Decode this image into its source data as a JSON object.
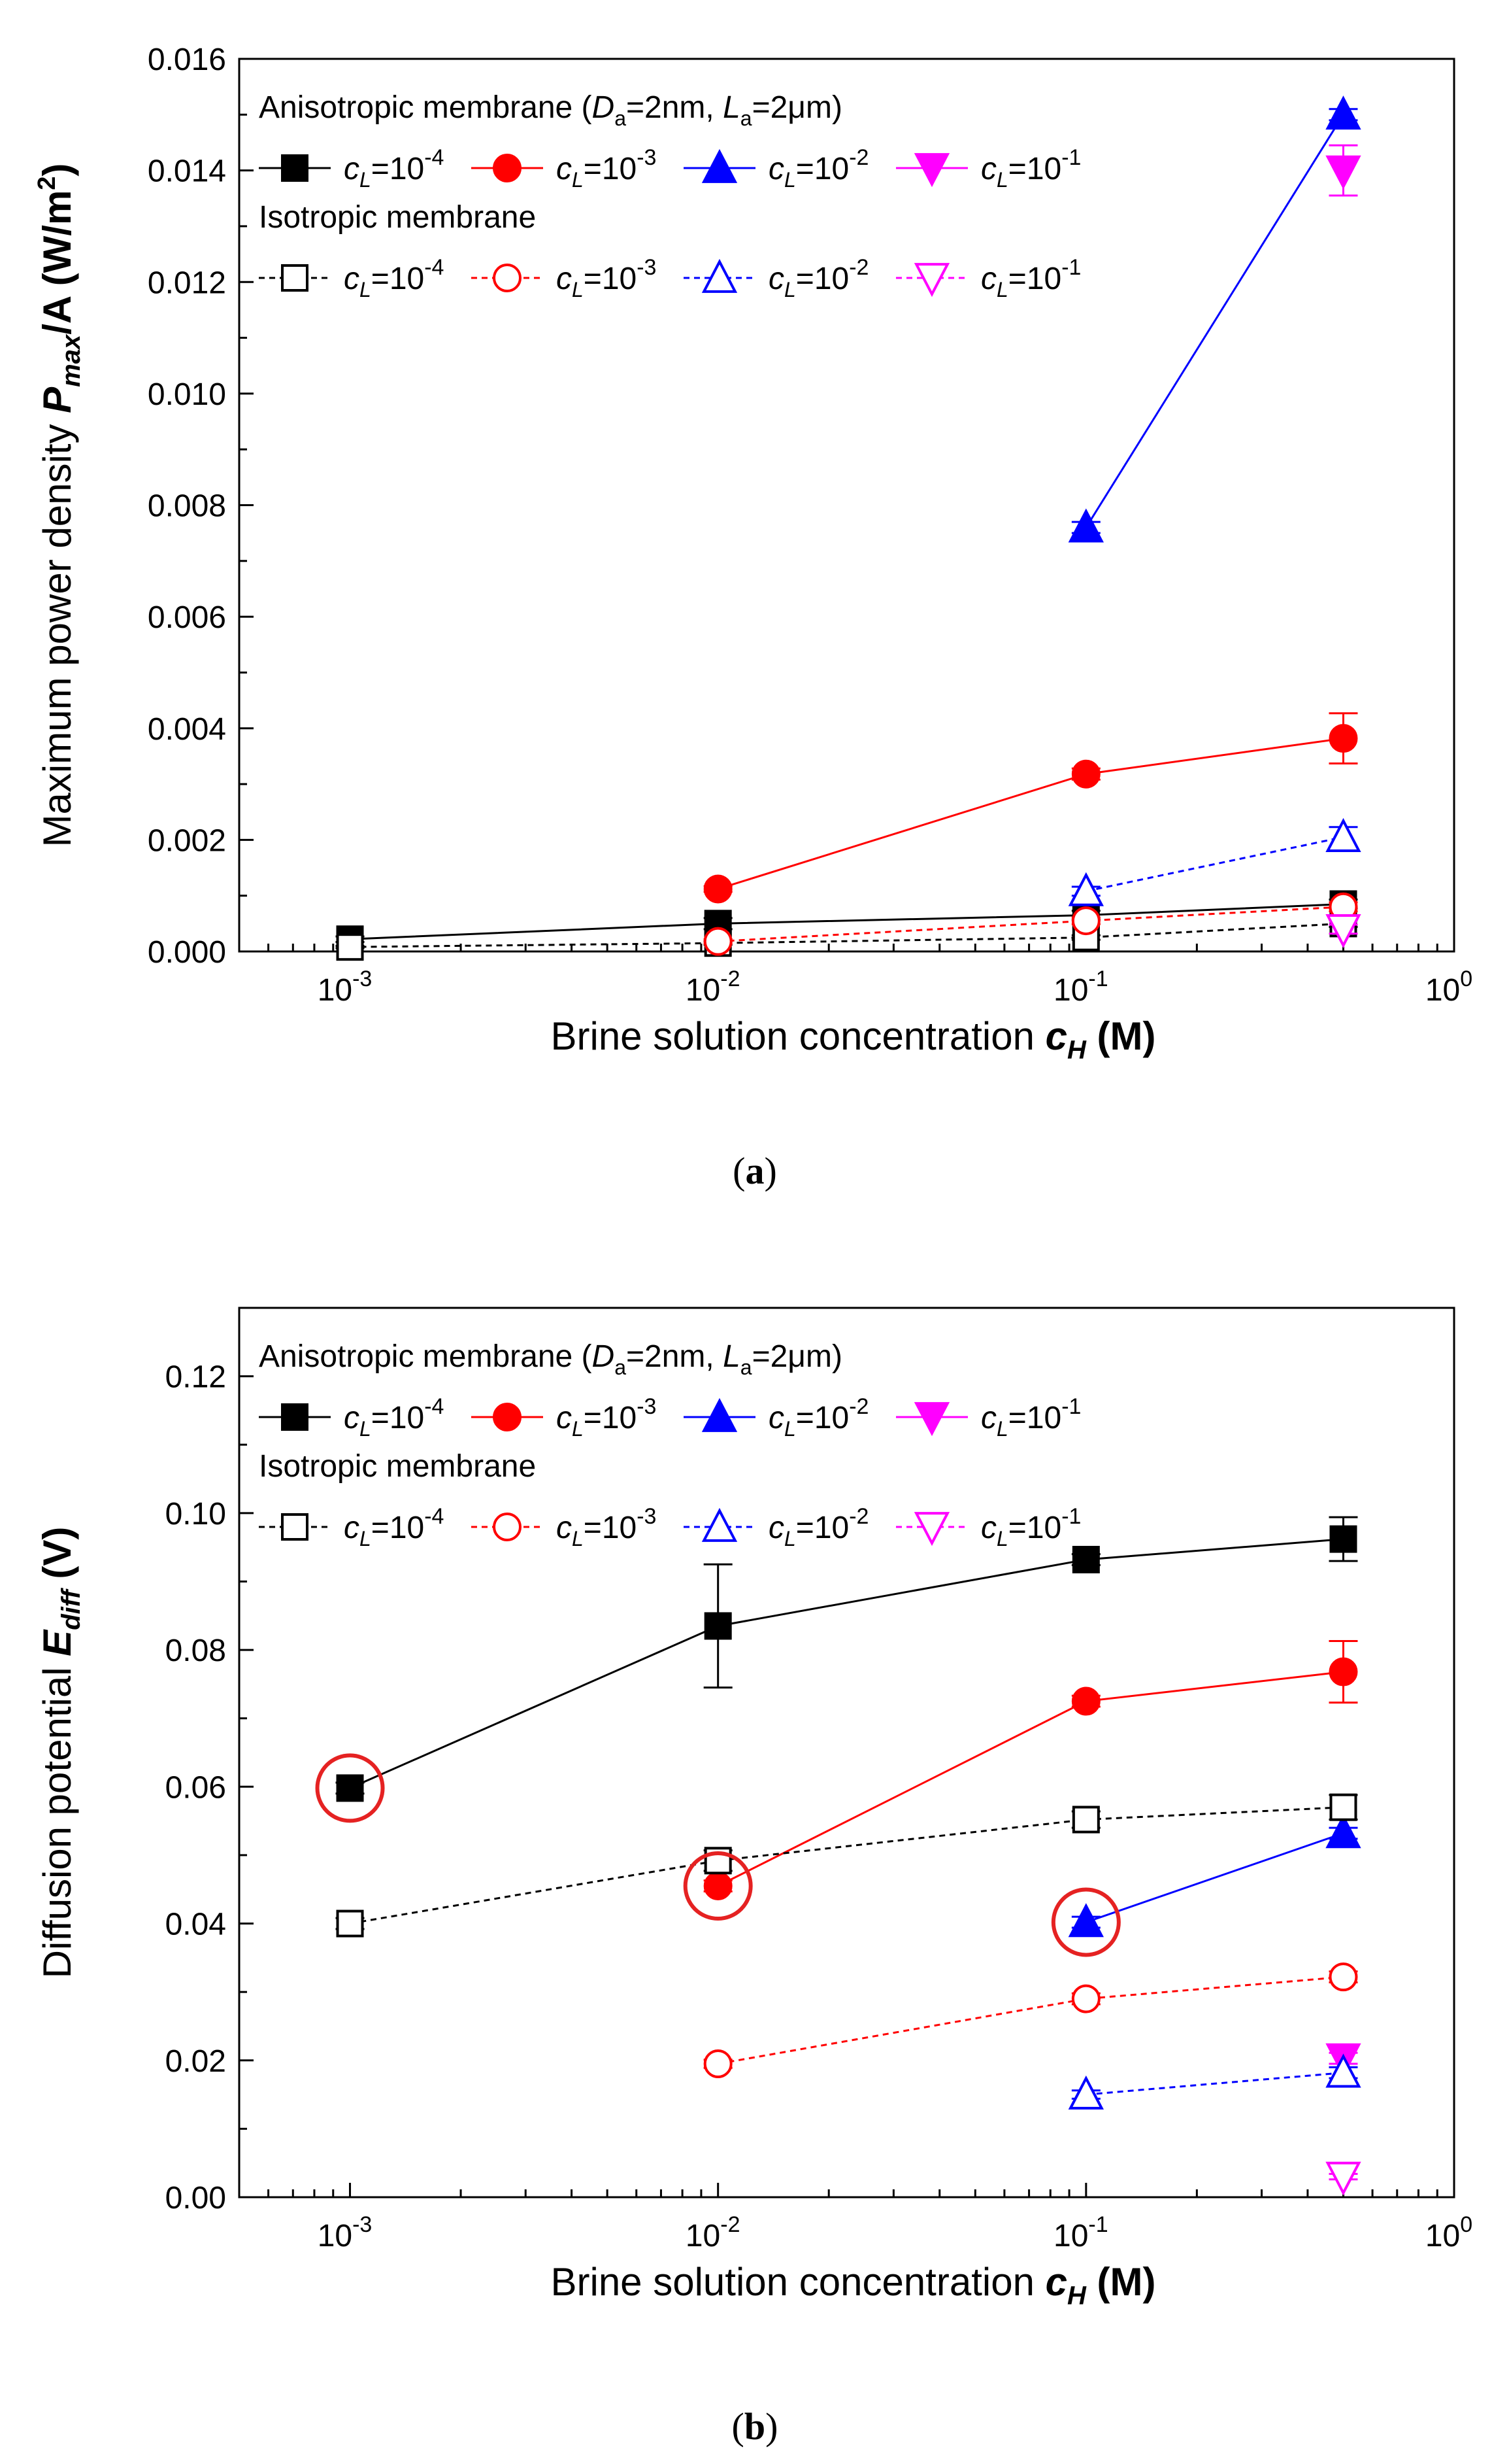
{
  "figure": {
    "panels": [
      {
        "caption": "(a)",
        "chart_data": {
          "type": "line",
          "xscale": "log",
          "xlim": [
            0.0005,
            1
          ],
          "ylim": [
            0,
            0.016
          ],
          "yticks": [
            0.0,
            0.002,
            0.004,
            0.006,
            0.008,
            0.01,
            0.012,
            0.014,
            0.016
          ],
          "ytick_labels": [
            "0.000",
            "0.002",
            "0.004",
            "0.006",
            "0.008",
            "0.010",
            "0.012",
            "0.014",
            "0.016"
          ],
          "xtick_labels": [
            "10-3",
            "10-2",
            "10-1",
            "100"
          ],
          "xlabel": {
            "main": "Brine solution concentration ",
            "var": "c",
            "sub": "H",
            "unit": " (M)"
          },
          "ylabel": {
            "main": "Maximum power density ",
            "var": "P",
            "sub": "max",
            "rest": "/A (W/m",
            "sup": "2",
            "end": ")"
          },
          "legend": {
            "position": "top-left",
            "aniso_title": "Anisotropic membrane (",
            "aniso_D": "D",
            "aniso_D_sub": "a",
            "aniso_D_val": "=2nm, ",
            "aniso_L": "L",
            "aniso_L_sub": "a",
            "aniso_L_val": "=2μm)",
            "iso_title": "Isotropic membrane"
          },
          "series": [
            {
              "name": "Aniso cL=10^-4",
              "cL_exp": "-4",
              "group": "anisotropic",
              "color": "#000000",
              "marker": "square",
              "filled": true,
              "dashed": false,
              "x": [
                0.001,
                0.01,
                0.1,
                0.5
              ],
              "y": [
                0.00022,
                0.0005,
                0.00065,
                0.00085
              ],
              "err": [
                5e-05,
                0.0001,
                8e-05,
                8e-05
              ]
            },
            {
              "name": "Aniso cL=10^-3",
              "cL_exp": "-3",
              "group": "anisotropic",
              "color": "#ff0000",
              "marker": "circle",
              "filled": true,
              "dashed": false,
              "x": [
                0.01,
                0.1,
                0.5
              ],
              "y": [
                0.00112,
                0.00318,
                0.00382
              ],
              "err": [
                5e-05,
                0.0001,
                0.00045
              ]
            },
            {
              "name": "Aniso cL=10^-2",
              "cL_exp": "-2",
              "group": "anisotropic",
              "color": "#0000ff",
              "marker": "triangle-up",
              "filled": true,
              "dashed": false,
              "x": [
                0.1,
                0.5
              ],
              "y": [
                0.0076,
                0.015
              ],
              "err": [
                0.0001,
                0.0001
              ]
            },
            {
              "name": "Aniso cL=10^-1",
              "cL_exp": "-1",
              "group": "anisotropic",
              "color": "#ff00ff",
              "marker": "triangle-down",
              "filled": true,
              "dashed": false,
              "x": [
                0.5
              ],
              "y": [
                0.014
              ],
              "err": [
                0.00045
              ]
            },
            {
              "name": "Iso cL=10^-4",
              "cL_exp": "-4",
              "group": "isotropic",
              "color": "#000000",
              "marker": "square",
              "filled": false,
              "dashed": true,
              "x": [
                0.001,
                0.01,
                0.1,
                0.5
              ],
              "y": [
                8e-05,
                0.00015,
                0.00025,
                0.0005
              ],
              "err": [
                2e-05,
                3e-05,
                4e-05,
                6e-05
              ]
            },
            {
              "name": "Iso cL=10^-3",
              "cL_exp": "-3",
              "group": "isotropic",
              "color": "#ff0000",
              "marker": "circle",
              "filled": false,
              "dashed": true,
              "x": [
                0.01,
                0.1,
                0.5
              ],
              "y": [
                0.00018,
                0.00055,
                0.0008
              ],
              "err": [
                4e-05,
                6e-05,
                8e-05
              ]
            },
            {
              "name": "Iso cL=10^-2",
              "cL_exp": "-2",
              "group": "isotropic",
              "color": "#0000ff",
              "marker": "triangle-up",
              "filled": false,
              "dashed": true,
              "x": [
                0.1,
                0.5
              ],
              "y": [
                0.00108,
                0.00205
              ],
              "err": [
                8e-05,
                0.00018
              ]
            },
            {
              "name": "Iso cL=10^-1",
              "cL_exp": "-1",
              "group": "isotropic",
              "color": "#ff00ff",
              "marker": "triangle-down",
              "filled": false,
              "dashed": true,
              "x": [
                0.5
              ],
              "y": [
                0.0004
              ],
              "err": [
                8e-05
              ]
            }
          ],
          "highlights": []
        }
      },
      {
        "caption": "(b)",
        "chart_data": {
          "type": "line",
          "xscale": "log",
          "xlim": [
            0.0005,
            1
          ],
          "ylim": [
            0,
            0.13
          ],
          "yticks": [
            0.0,
            0.02,
            0.04,
            0.06,
            0.08,
            0.1,
            0.12
          ],
          "ytick_labels": [
            "0.00",
            "0.02",
            "0.04",
            "0.06",
            "0.08",
            "0.10",
            "0.12"
          ],
          "xtick_labels": [
            "10-3",
            "10-2",
            "10-1",
            "100"
          ],
          "xlabel": {
            "main": "Brine solution concentration ",
            "var": "c",
            "sub": "H",
            "unit": " (M)"
          },
          "ylabel": {
            "main": "Diffusion potential ",
            "var": "E",
            "sub": "diff",
            "rest": " (V)",
            "sup": "",
            "end": ""
          },
          "legend": {
            "position": "top-left",
            "aniso_title": "Anisotropic membrane (",
            "aniso_D": "D",
            "aniso_D_sub": "a",
            "aniso_D_val": "=2nm, ",
            "aniso_L": "L",
            "aniso_L_sub": "a",
            "aniso_L_val": "=2μm)",
            "iso_title": "Isotropic membrane"
          },
          "series": [
            {
              "name": "Aniso cL=10^-4",
              "cL_exp": "-4",
              "group": "anisotropic",
              "color": "#000000",
              "marker": "square",
              "filled": true,
              "dashed": false,
              "x": [
                0.001,
                0.01,
                0.1,
                0.5
              ],
              "y": [
                0.0598,
                0.0835,
                0.0932,
                0.0962
              ],
              "err": [
                0.0008,
                0.009,
                0.0008,
                0.0032
              ]
            },
            {
              "name": "Aniso cL=10^-3",
              "cL_exp": "-3",
              "group": "anisotropic",
              "color": "#ff0000",
              "marker": "circle",
              "filled": true,
              "dashed": false,
              "x": [
                0.01,
                0.1,
                0.5
              ],
              "y": [
                0.0455,
                0.0725,
                0.0768
              ],
              "err": [
                0.0008,
                0.0008,
                0.0045
              ]
            },
            {
              "name": "Aniso cL=10^-2",
              "cL_exp": "-2",
              "group": "anisotropic",
              "color": "#0000ff",
              "marker": "triangle-up",
              "filled": true,
              "dashed": false,
              "x": [
                0.1,
                0.5
              ],
              "y": [
                0.0402,
                0.0532
              ],
              "err": [
                0.0008,
                0.0008
              ]
            },
            {
              "name": "Aniso cL=10^-1",
              "cL_exp": "-1",
              "group": "anisotropic",
              "color": "#ff00ff",
              "marker": "triangle-down",
              "filled": true,
              "dashed": false,
              "x": [
                0.5
              ],
              "y": [
                0.0203
              ],
              "err": [
                0.0008
              ]
            },
            {
              "name": "Iso cL=10^-4",
              "cL_exp": "-4",
              "group": "isotropic",
              "color": "#000000",
              "marker": "square",
              "filled": false,
              "dashed": true,
              "x": [
                0.001,
                0.01,
                0.1,
                0.5
              ],
              "y": [
                0.04,
                0.0492,
                0.0552,
                0.057
              ],
              "err": [
                0.0008,
                0.0015,
                0.0012,
                0.0018
              ]
            },
            {
              "name": "Iso cL=10^-3",
              "cL_exp": "-3",
              "group": "isotropic",
              "color": "#ff0000",
              "marker": "circle",
              "filled": false,
              "dashed": true,
              "x": [
                0.01,
                0.1,
                0.5
              ],
              "y": [
                0.0195,
                0.029,
                0.0322
              ],
              "err": [
                0.0006,
                0.0008,
                0.0008
              ]
            },
            {
              "name": "Iso cL=10^-2",
              "cL_exp": "-2",
              "group": "isotropic",
              "color": "#0000ff",
              "marker": "triangle-up",
              "filled": false,
              "dashed": true,
              "x": [
                0.1,
                0.5
              ],
              "y": [
                0.015,
                0.0182
              ],
              "err": [
                0.0006,
                0.0008
              ]
            },
            {
              "name": "Iso cL=10^-1",
              "cL_exp": "-1",
              "group": "isotropic",
              "color": "#ff00ff",
              "marker": "triangle-down",
              "filled": false,
              "dashed": true,
              "x": [
                0.5
              ],
              "y": [
                0.003
              ],
              "err": [
                0.0004
              ]
            }
          ],
          "highlights": [
            {
              "x": 0.001,
              "y": 0.0598,
              "color": "#e52222"
            },
            {
              "x": 0.01,
              "y": 0.0455,
              "color": "#e52222"
            },
            {
              "x": 0.1,
              "y": 0.0402,
              "color": "#e52222"
            }
          ]
        }
      }
    ]
  }
}
